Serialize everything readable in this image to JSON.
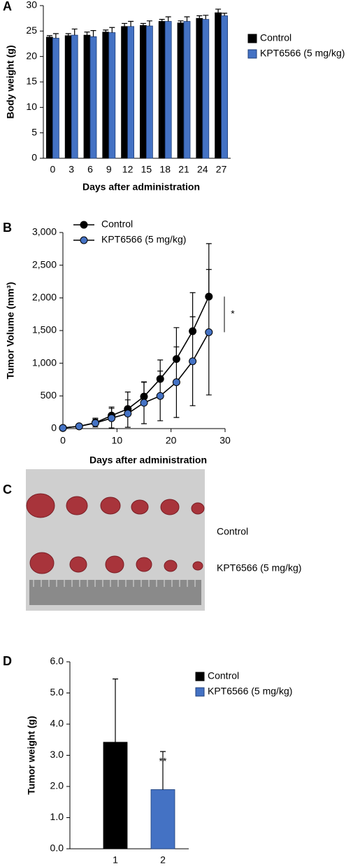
{
  "chart_data": [
    {
      "type": "bar",
      "panel_label": "A",
      "xlabel": "Days after administration",
      "ylabel": "Body weight (g)",
      "categories": [
        "0",
        "3",
        "6",
        "9",
        "12",
        "15",
        "18",
        "21",
        "24",
        "27"
      ],
      "series": [
        {
          "name": "Control",
          "color": "#000000",
          "values": [
            23.8,
            24.1,
            24.2,
            24.8,
            25.9,
            26.1,
            26.9,
            26.6,
            27.5,
            28.6
          ],
          "errors": [
            0.3,
            0.4,
            0.6,
            0.4,
            0.6,
            0.4,
            0.4,
            0.4,
            0.5,
            0.7
          ]
        },
        {
          "name": "KPT6566 (5 mg/kg)",
          "color": "#4472c4",
          "values": [
            23.6,
            24.2,
            23.9,
            24.7,
            25.9,
            26.0,
            26.9,
            26.9,
            27.3,
            28.0
          ],
          "errors": [
            0.9,
            1.2,
            1.2,
            1.0,
            1.0,
            1.0,
            0.9,
            0.9,
            0.8,
            0.5
          ]
        }
      ],
      "ylim": [
        0,
        30
      ],
      "yticks": [
        0,
        5,
        10,
        15,
        20,
        25,
        30
      ],
      "legend": "right"
    },
    {
      "type": "line",
      "panel_label": "B",
      "xlabel": "Days after administration",
      "ylabel": "Tumor Volume (mm³)",
      "x": [
        0,
        3,
        6,
        9,
        12,
        15,
        18,
        21,
        24,
        27
      ],
      "series": [
        {
          "name": "Control",
          "color": "#000000",
          "values": [
            10,
            35,
            90,
            200,
            300,
            490,
            760,
            1065,
            1490,
            2020
          ],
          "errors": [
            0,
            20,
            70,
            130,
            260,
            220,
            290,
            480,
            590,
            810
          ]
        },
        {
          "name": "KPT6566 (5 mg/kg)",
          "color": "#4472c4",
          "values": [
            10,
            35,
            85,
            160,
            230,
            395,
            500,
            710,
            1030,
            1475
          ],
          "errors": [
            0,
            20,
            60,
            150,
            210,
            320,
            380,
            540,
            680,
            960
          ]
        }
      ],
      "xlim": [
        0,
        30
      ],
      "xticks": [
        0,
        10,
        20,
        30
      ],
      "ylim": [
        0,
        3000
      ],
      "yticks": [
        0,
        500,
        {
          "value": 1000,
          "label": "1,000"
        },
        {
          "value": 1500,
          "label": "1,500"
        },
        {
          "value": 2000,
          "label": "2,000"
        },
        {
          "value": 2500,
          "label": "2,500"
        },
        {
          "value": 3000,
          "label": "3,000"
        }
      ],
      "annotation": "*",
      "legend": "top-left"
    },
    {
      "type": "bar",
      "panel_label": "D",
      "ylabel": "Tumor weight (g)",
      "categories": [
        "1",
        "2"
      ],
      "series": [
        {
          "name": "Control",
          "color": "#000000",
          "values": [
            3.42,
            null
          ],
          "errors": [
            2.03,
            null
          ]
        },
        {
          "name": "KPT6566 (5 mg/kg)",
          "color": "#4472c4",
          "values": [
            null,
            1.9
          ],
          "errors": [
            null,
            1.22
          ]
        }
      ],
      "ylim": [
        0,
        6
      ],
      "yticks": [
        {
          "value": 0,
          "label": "0.0"
        },
        {
          "value": 1,
          "label": "1.0"
        },
        {
          "value": 2,
          "label": "2.0"
        },
        {
          "value": 3,
          "label": "3.0"
        },
        {
          "value": 4,
          "label": "4.0"
        },
        {
          "value": 5,
          "label": "5.0"
        },
        {
          "value": 6,
          "label": "6.0"
        }
      ],
      "annotation": "**",
      "legend": "right"
    }
  ],
  "photo": {
    "panel_label": "C",
    "labels": [
      "Control",
      "KPT6566 (5 mg/kg)"
    ]
  }
}
